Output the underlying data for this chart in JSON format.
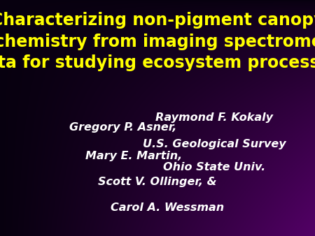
{
  "title_line1": "Characterizing non-pigment canopy",
  "title_line2": "biochemistry from imaging spectrometer",
  "title_line3": "data for studying ecosystem processes",
  "title_color": "#FFFF00",
  "title_fontsize": 17,
  "authors_left": [
    "Gregory P. Asner,",
    "Mary E. Martin,",
    "Scott V. Ollinger, &",
    "Carol A. Wessman"
  ],
  "authors_right": [
    "Raymond F. Kokaly",
    "U.S. Geological Survey",
    "Ohio State Univ."
  ],
  "author_color": "#FFFFFF",
  "author_fontsize": 11.5,
  "bg_black": [
    0.03,
    0.0,
    0.06
  ],
  "bg_purple": [
    0.36,
    0.0,
    0.44
  ]
}
